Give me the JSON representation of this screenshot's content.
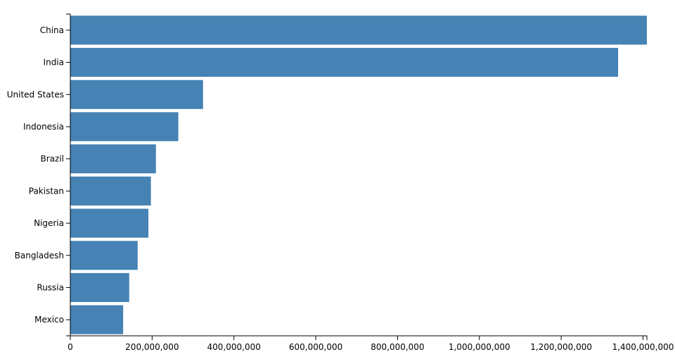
{
  "chart_data": {
    "type": "bar",
    "orientation": "horizontal",
    "categories": [
      "China",
      "India",
      "United States",
      "Indonesia",
      "Brazil",
      "Pakistan",
      "Nigeria",
      "Bangladesh",
      "Russia",
      "Mexico"
    ],
    "values": [
      1409517397,
      1339180127,
      324459463,
      263991379,
      209288278,
      197015955,
      190886311,
      164669751,
      143989754,
      129163276
    ],
    "color": "#4682b4",
    "xlim": [
      0,
      1409517397
    ],
    "xticks": [
      0,
      {
        "value": 200000000,
        "label": "200,000,000"
      },
      {
        "value": 400000000,
        "label": "400,000,000"
      },
      {
        "value": 600000000,
        "label": "600,000,000"
      },
      {
        "value": 800000000,
        "label": "800,000,000"
      },
      {
        "value": 1000000000,
        "label": "1,000,000,000"
      },
      {
        "value": 1200000000,
        "label": "1,200,000,000"
      },
      {
        "value": 1400000000,
        "label": "1,400,000,000"
      }
    ],
    "grid": false
  }
}
